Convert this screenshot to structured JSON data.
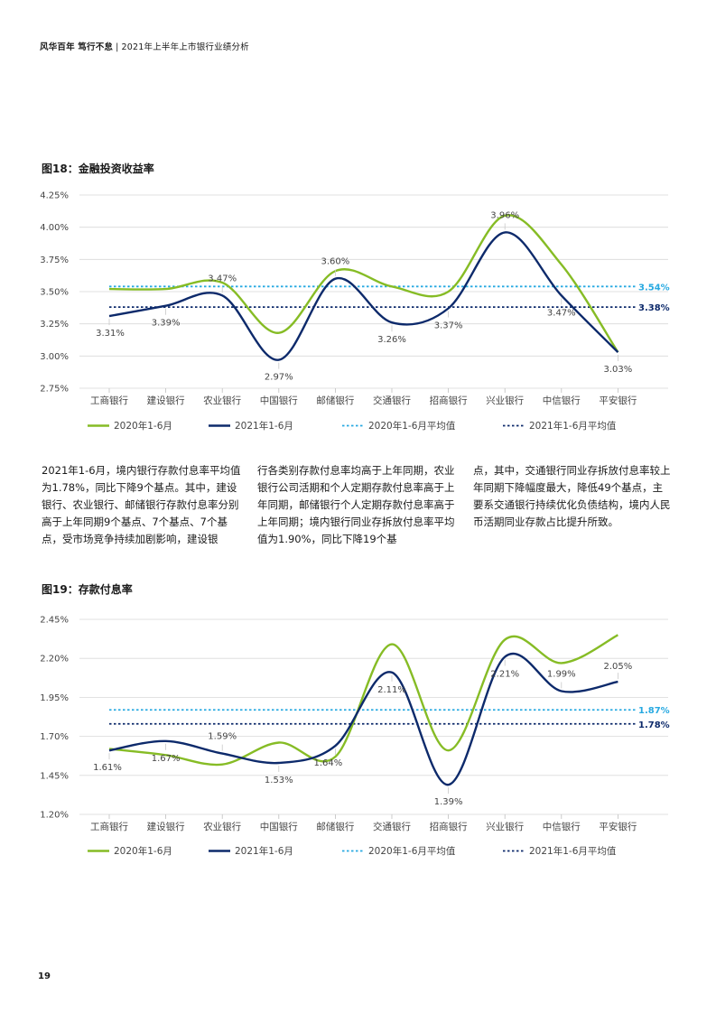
{
  "header": {
    "brand": "风华百年 笃行不怠",
    "separator": "|",
    "subtitle": "2021年上半年上市银行业绩分析"
  },
  "page_number": "19",
  "body_text": {
    "col1": "2021年1-6月，境内银行存款付息率平均值为1.78%，同比下降9个基点。其中，建设银行、农业银行、邮储银行存款付息率分别高于上年同期9个基点、7个基点、7个基点，受市场竞争持续加剧影响，建设银",
    "col2": "行各类别存款付息率均高于上年同期，农业银行公司活期和个人定期存款付息率高于上年同期，邮储银行个人定期存款付息率高于上年同期；境内银行同业存拆放付息率平均值为1.90%，同比下降19个基",
    "col3": "点，其中，交通银行同业存拆放付息率较上年同期下降幅度最大，降低49个基点，主要系交通银行持续优化负债结构，境内人民币活期同业存款占比提升所致。"
  },
  "chart_data": [
    {
      "type": "line",
      "title": "图18：金融投资收益率",
      "categories": [
        "工商银行",
        "建设银行",
        "农业银行",
        "中国银行",
        "邮储银行",
        "交通银行",
        "招商银行",
        "兴业银行",
        "中信银行",
        "平安银行"
      ],
      "ylim": [
        2.75,
        4.25
      ],
      "ytick_values": [
        2.75,
        3.0,
        3.25,
        3.5,
        3.75,
        4.0,
        4.25
      ],
      "yticks": [
        "2.75%",
        "3.00%",
        "3.25%",
        "3.50%",
        "3.75%",
        "4.00%",
        "4.25%"
      ],
      "series": [
        {
          "name": "2020年1-6月",
          "color": "#86bc25",
          "values": [
            3.52,
            3.52,
            3.57,
            3.18,
            3.66,
            3.54,
            3.5,
            4.09,
            3.71,
            3.03
          ]
        },
        {
          "name": "2021年1-6月",
          "color": "#0d2a6b",
          "values": [
            3.31,
            3.39,
            3.47,
            2.97,
            3.6,
            3.26,
            3.37,
            3.96,
            3.47,
            3.03
          ]
        }
      ],
      "data_labels": [
        "3.31%",
        "3.39%",
        "3.47%",
        "2.97%",
        "3.60%",
        "3.26%",
        "3.37%",
        "3.96%",
        "3.47%",
        "3.03%"
      ],
      "averages": [
        {
          "name": "2020年1-6月平均值",
          "color": "#27a9e1",
          "value": 3.54,
          "label": "3.54%"
        },
        {
          "name": "2021年1-6月平均值",
          "color": "#0d2a6b",
          "value": 3.38,
          "label": "3.38%"
        }
      ]
    },
    {
      "type": "line",
      "title": "图19：存款付息率",
      "categories": [
        "工商银行",
        "建设银行",
        "农业银行",
        "中国银行",
        "邮储银行",
        "交通银行",
        "招商银行",
        "兴业银行",
        "中信银行",
        "平安银行"
      ],
      "ylim": [
        1.2,
        2.45
      ],
      "ytick_values": [
        1.2,
        1.45,
        1.7,
        1.95,
        2.2,
        2.45
      ],
      "yticks": [
        "1.20%",
        "1.45%",
        "1.70%",
        "1.95%",
        "2.20%",
        "2.45%"
      ],
      "series": [
        {
          "name": "2020年1-6月",
          "color": "#86bc25",
          "values": [
            1.62,
            1.58,
            1.52,
            1.66,
            1.57,
            2.29,
            1.61,
            2.32,
            2.17,
            2.35
          ]
        },
        {
          "name": "2021年1-6月",
          "color": "#0d2a6b",
          "values": [
            1.61,
            1.67,
            1.59,
            1.53,
            1.64,
            2.11,
            1.39,
            2.21,
            1.99,
            2.05
          ]
        }
      ],
      "data_labels": [
        "1.61%",
        "1.67%",
        "1.59%",
        "1.53%",
        "1.64%",
        "2.11%",
        "1.39%",
        "2.21%",
        "1.99%",
        "2.05%"
      ],
      "averages": [
        {
          "name": "2020年1-6月平均值",
          "color": "#27a9e1",
          "value": 1.87,
          "label": "1.87%"
        },
        {
          "name": "2021年1-6月平均值",
          "color": "#0d2a6b",
          "value": 1.78,
          "label": "1.78%"
        }
      ]
    }
  ]
}
